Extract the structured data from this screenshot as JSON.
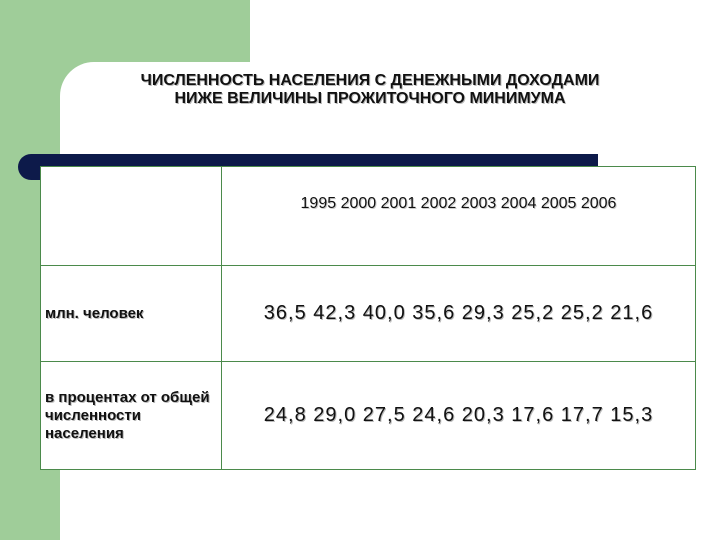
{
  "title": {
    "line1": "ЧИСЛЕННОСТЬ НАСЕЛЕНИЯ С ДЕНЕЖНЫМИ ДОХОДАМИ",
    "line2": "НИЖЕ ВЕЛИЧИНЫ ПРОЖИТОЧНОГО МИНИМУМА"
  },
  "table": {
    "years": [
      "1995",
      "2000",
      "2001",
      "2002",
      "2003",
      "2004",
      "2005",
      "2006"
    ],
    "rows": [
      {
        "label": "млн. человек",
        "values": [
          "36,5",
          "42,3",
          "40,0",
          "35,6",
          "29,3",
          "25,2",
          "25,2",
          "21,6"
        ]
      },
      {
        "label": "в процентах от общей численности населения",
        "values": [
          "24,8",
          "29,0",
          "27,5",
          "24,6",
          "20,3",
          "17,6",
          "17,7",
          "15,3"
        ]
      }
    ]
  },
  "colors": {
    "green": "#9fcd99",
    "navy": "#0d1a4a",
    "grid": "#4b8a4b"
  }
}
